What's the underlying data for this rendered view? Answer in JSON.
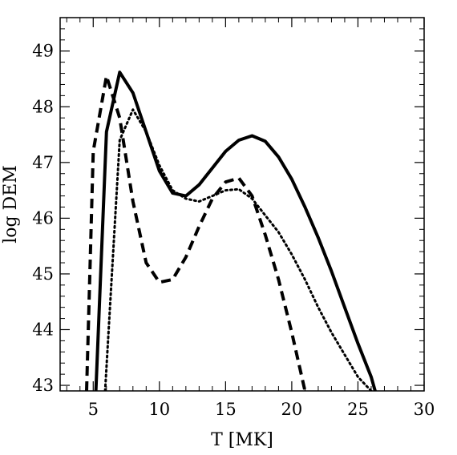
{
  "chart_data": {
    "type": "line",
    "title": "",
    "xlabel": "T [MK]",
    "ylabel": "log DEM",
    "xlim": [
      2.5,
      30
    ],
    "ylim": [
      42.9,
      49.6
    ],
    "x_ticks": [
      5,
      10,
      15,
      20,
      25,
      30
    ],
    "y_ticks": [
      43,
      44,
      45,
      46,
      47,
      48,
      49
    ],
    "x_tick_labels": [
      "5",
      "10",
      "15",
      "20",
      "25",
      "30"
    ],
    "y_tick_labels": [
      "43",
      "44",
      "45",
      "46",
      "47",
      "48",
      "49"
    ],
    "grid": false,
    "legend": "none",
    "series": [
      {
        "style": "solid",
        "color": "#000000",
        "x": [
          5.2,
          6.0,
          7.0,
          8.0,
          9.0,
          10.0,
          11.0,
          12.0,
          13.0,
          14.0,
          15.0,
          16.0,
          17.0,
          18.0,
          19.0,
          20.0,
          21.0,
          22.0,
          23.0,
          24.0,
          25.0,
          26.0,
          26.3
        ],
        "y": [
          42.9,
          47.55,
          48.62,
          48.25,
          47.55,
          46.85,
          46.45,
          46.4,
          46.6,
          46.9,
          47.2,
          47.4,
          47.48,
          47.38,
          47.1,
          46.7,
          46.2,
          45.65,
          45.05,
          44.4,
          43.75,
          43.15,
          42.9
        ]
      },
      {
        "style": "dashed",
        "color": "#000000",
        "x": [
          4.5,
          5.0,
          6.0,
          7.0,
          8.0,
          9.0,
          10.0,
          11.0,
          12.0,
          13.0,
          14.0,
          15.0,
          16.0,
          17.0,
          18.0,
          19.0,
          20.0,
          21.0
        ],
        "y": [
          42.9,
          47.2,
          48.55,
          47.8,
          46.3,
          45.2,
          44.85,
          44.9,
          45.3,
          45.85,
          46.35,
          46.65,
          46.72,
          46.4,
          45.7,
          44.9,
          43.95,
          42.9
        ]
      },
      {
        "style": "dotted",
        "color": "#000000",
        "x": [
          5.9,
          7.0,
          8.0,
          9.0,
          10.0,
          11.0,
          12.0,
          13.0,
          14.0,
          15.0,
          16.0,
          17.0,
          18.0,
          19.0,
          20.0,
          21.0,
          22.0,
          23.0,
          24.0,
          25.0,
          26.0
        ],
        "y": [
          42.9,
          47.4,
          47.95,
          47.55,
          46.95,
          46.5,
          46.35,
          46.3,
          46.4,
          46.5,
          46.52,
          46.35,
          46.05,
          45.75,
          45.35,
          44.9,
          44.4,
          43.95,
          43.55,
          43.15,
          42.9
        ]
      }
    ]
  }
}
